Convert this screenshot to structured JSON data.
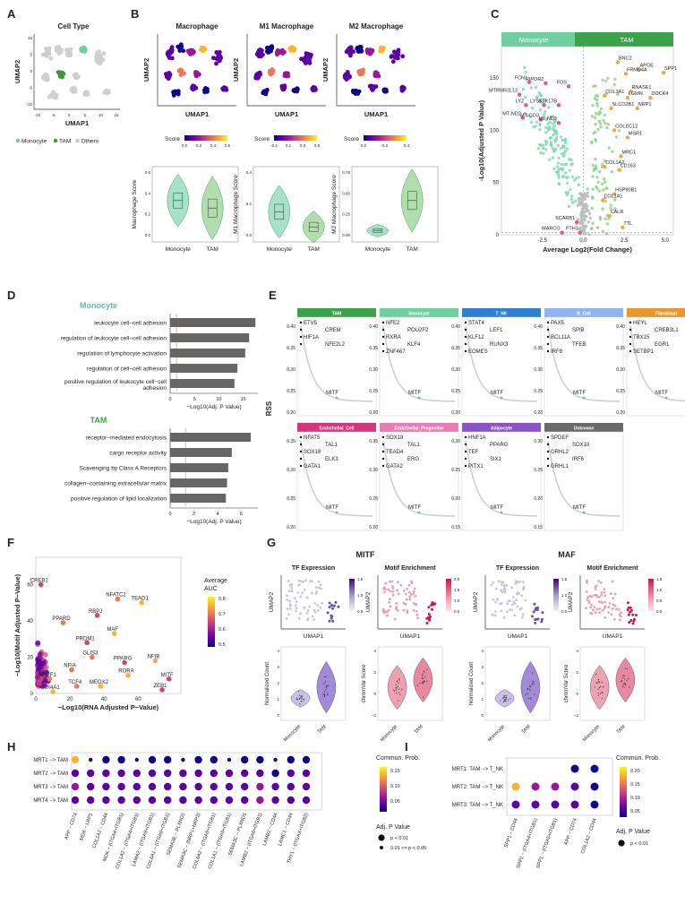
{
  "panel_letters": [
    "A",
    "B",
    "C",
    "D",
    "E",
    "F",
    "G",
    "H",
    "I"
  ],
  "panelA": {
    "title": "Cell Type",
    "xlabel": "UMAP1",
    "ylabel": "UMAP2",
    "xticks": [
      "-10",
      "-5",
      "0",
      "5",
      "10",
      "15"
    ],
    "yticks": [
      "-10",
      "-5",
      "0",
      "5",
      "10"
    ],
    "legend": [
      {
        "label": "Monocyte",
        "color": "#6fcf9f"
      },
      {
        "label": "TAM",
        "color": "#3a9a3a"
      },
      {
        "label": "Others",
        "color": "#c9c9c9"
      }
    ]
  },
  "panelB": {
    "umaps": [
      {
        "title": "Macrophage",
        "legend_title": "Score",
        "ticks": [
          "0.0",
          "0.2",
          "0.4",
          "0.6"
        ]
      },
      {
        "title": "M1 Macrophage",
        "legend_title": "Score",
        "ticks": [
          "-0.1",
          "0.1",
          "0.3",
          "0.5"
        ]
      },
      {
        "title": "M2 Macrophage",
        "legend_title": "Score",
        "ticks": [
          "0.0",
          "0.2",
          "0.4"
        ]
      }
    ],
    "xlabel": "UMAP1",
    "ylabel": "UMAP2",
    "violins": [
      {
        "ylabel": "Macrophage Score",
        "yticks": [
          "0.0",
          "0.2",
          "0.4",
          "0.6"
        ],
        "groups": [
          "Monocyte",
          "TAM"
        ]
      },
      {
        "ylabel": "M1 Macrophage Score",
        "yticks": [
          "0.0",
          "0.2",
          "0.4"
        ],
        "groups": [
          "Monocyte",
          "TAM"
        ]
      },
      {
        "ylabel": "M2 Macrophage Score",
        "yticks": [
          "0.00",
          "0.25",
          "0.50",
          "0.75"
        ],
        "groups": [
          "Monocyte",
          "TAM"
        ]
      }
    ]
  },
  "panelC": {
    "header_left": "Monocyte",
    "header_right": "TAM",
    "xlabel": "Average Log2(Fold Change)",
    "ylabel": "-Log10(Adjusted P Value)",
    "xticks": [
      "-2.5",
      "0.0",
      "2.5",
      "5.0"
    ],
    "yticks": [
      "0",
      "50",
      "100",
      "150"
    ],
    "genes": [
      "BNC2",
      "APOE",
      "FRMD4A",
      "SPP1",
      "RNASE1",
      "FCN1",
      "RIPOR2",
      "FOS",
      "COL3A1",
      "LGMN",
      "DOCK4",
      "MTRNR2L12",
      "LYZ",
      "LYST",
      "STK17B",
      "SLCO2B1",
      "NRP1",
      "MT-ND2",
      "MT-CO3",
      "MT-ND3",
      "COLEC12",
      "MSR1",
      "MRC1",
      "COL1A2",
      "CD163",
      "HSP90B1",
      "COL1A1",
      "CALR",
      "SCARB1",
      "TTL",
      "MARCO",
      "FTH1"
    ]
  },
  "panelD": {
    "groups": [
      {
        "title": "Monocyte",
        "color": "#5cc09a",
        "terms": [
          "leukocyte cell−cell adhesion",
          "regulation of leukocyte cell−cell adhesion",
          "regulation of lymphocyte activation",
          "regulation of cell−cell adhesion",
          "positive regulation of leukocyte cell−cell adhesion"
        ],
        "values": [
          17.5,
          16.2,
          15.4,
          13.8,
          13.2
        ],
        "xticks": [
          "0",
          "5",
          "10",
          "15"
        ],
        "xmax": 18
      },
      {
        "title": "TAM",
        "color": "#3aa34a",
        "terms": [
          "receptor−mediated endocytosis",
          "cargo receptor activity",
          "Scavenging by Class A Receptors",
          "collagen−containing extracellular matrix",
          "positive regulation of lipid localization"
        ],
        "values": [
          6.8,
          5.2,
          4.9,
          4.8,
          4.7
        ],
        "xticks": [
          "0",
          "2",
          "4",
          "6"
        ],
        "xmax": 7.4
      }
    ],
    "xlabel": "−Log10(Adj. P Value)"
  },
  "panelE": {
    "ylabel": "RSS",
    "boxes": [
      {
        "title": "TAM",
        "color": "#3aa34a",
        "genes": [
          "ETV5",
          "CREM",
          "HIF1A",
          "NFE2L2",
          "MITF"
        ],
        "yticks": [
          "0.40",
          "0.35",
          "0.30",
          "0.25",
          "0.20"
        ]
      },
      {
        "title": "Monocyte",
        "color": "#6fcf9f",
        "genes": [
          "NFE2",
          "POU2F2",
          "RXRA",
          "KLF4",
          "ZNF467",
          "MITF"
        ],
        "yticks": [
          "0.40",
          "0.35",
          "0.30",
          "0.25",
          "0.20"
        ]
      },
      {
        "title": "T_NK",
        "color": "#2e7fd1",
        "genes": [
          "STAT4",
          "LEF1",
          "KLF12",
          "RUNX3",
          "EOMES",
          "MITF"
        ],
        "yticks": [
          "0.40",
          "0.35",
          "0.30",
          "0.25",
          "0.20"
        ]
      },
      {
        "title": "B_Cell",
        "color": "#8fb5ee",
        "genes": [
          "PAX5",
          "SPIB",
          "BCL11A",
          "TFEB",
          "IRF8",
          "MITF"
        ],
        "yticks": [
          "0.40",
          "0.35",
          "0.30",
          "0.25",
          "0.20"
        ]
      },
      {
        "title": "Fibroblast",
        "color": "#e8962e",
        "genes": [
          "HEYL",
          "CREB3L1",
          "TBX15",
          "EGR1",
          "SETBP1",
          "MITF"
        ],
        "yticks": [
          "0.40",
          "0.35",
          "0.30",
          "0.25",
          "0.20"
        ]
      },
      {
        "title": "Endothelial_Cell",
        "color": "#d6357b",
        "genes": [
          "NFAT5",
          "TAL1",
          "SOX18",
          "ELK3",
          "GATA1",
          "MITF"
        ],
        "yticks": [
          "0.35",
          "0.30",
          "0.25",
          "0.20"
        ]
      },
      {
        "title": "Endothelial_Progenitor",
        "color": "#e77db3",
        "genes": [
          "SOX18",
          "TAL1",
          "TEAD4",
          "ERG",
          "GATA2",
          "MITF"
        ],
        "yticks": [
          "0.35",
          "0.30",
          "0.25",
          "0.20"
        ]
      },
      {
        "title": "Adipocyte",
        "color": "#8b53c7",
        "genes": [
          "HNF1A",
          "PPARG",
          "TEF",
          "SIX1",
          "PITX1",
          "MITF"
        ],
        "yticks": [
          "0.30",
          "0.25",
          "0.20",
          "0.15"
        ]
      },
      {
        "title": "Unknown",
        "color": "#6a6a6a",
        "genes": [
          "SPDEF",
          "SOX10",
          "GRHL2",
          "IRF6",
          "GRHL1",
          "MITF"
        ],
        "yticks": [
          "0.30",
          "0.25",
          "0.20",
          "0.15"
        ]
      }
    ]
  },
  "panelF": {
    "xlabel": "−Log10(RNA Adjusted P−Value)",
    "ylabel": "−Log10(Motif Adjusted P−Value)",
    "xticks": [
      "0",
      "20",
      "40",
      "60"
    ],
    "yticks": [
      "0",
      "20",
      "40",
      "60"
    ],
    "legend_title": "Average AUC",
    "legend_ticks": [
      "0.8",
      "0.7",
      "0.6",
      "0.5"
    ],
    "labels": [
      "CREB1",
      "NFATC2",
      "TEAD1",
      "RBPJ",
      "PPARD",
      "MAF",
      "PRDM1",
      "GLIS3",
      "NFIB",
      "PPARG",
      "NFIA",
      "RORA",
      "MITF",
      "TCF4",
      "MEOX2",
      "ZEB1",
      "NR2F1",
      "NR4A1"
    ]
  },
  "panelG": {
    "title_mitf": "MITF",
    "title_maf": "MAF",
    "subtitles": [
      "TF Expression",
      "Motif Enrichment",
      "TF Expression",
      "Motif Enrichment"
    ],
    "xlabel": "UMAP1",
    "ylabel": "UMAP2",
    "violin_ylabels": [
      "Normalized Count",
      "chromVar Score",
      "Normalized Count",
      "chromVar Score"
    ],
    "groups": [
      "Monocyte",
      "TAM"
    ],
    "cb_ticks": [
      [
        "0.5",
        "1.0",
        "1.5"
      ],
      [
        "0.5",
        "1.0",
        "1.5",
        "2.0"
      ],
      [
        "0.5",
        "1.0",
        "1.5"
      ],
      [
        "0.0",
        "0.5",
        "1.0",
        "1.5"
      ]
    ],
    "vticks": [
      [
        "0",
        "1",
        "2",
        "3",
        "4"
      ],
      [
        "−2",
        "0",
        "2",
        "4"
      ],
      [
        "0",
        "1",
        "2",
        "3",
        "4"
      ],
      [
        "−2",
        "0",
        "2",
        "4"
      ]
    ]
  },
  "panelH": {
    "rows": [
      "MRT1 −> TAM",
      "MRT2 −> TAM",
      "MRT3 −> TAM",
      "MRT4 −> TAM"
    ],
    "cols": [
      "APP − CD74",
      "MDK − LRP1",
      "COL1A2 − CD44",
      "MDK − (ITGA4+ITGB1)",
      "COL1A2 − (ITGA4+ITGB1)",
      "LAMA2 − (ITGA9+ITGB1)",
      "COL6A1 − (ITGA9+ITGB1)",
      "SEMA3E − PLXND1",
      "SEMA3C − (NRP1+NRP2)",
      "COL6A2 − (ITGA9+ITGB1)",
      "COL1A1 − (ITGA9+ITGB1)",
      "SEMA3C − PLXND1",
      "LAMB2 − (ITGA6+ITGB1)",
      "LAMB2 − CD44",
      "LAMC1 − CD44",
      "THY1 − (ITGAX+ITGB2)"
    ],
    "legend_title": "Commun. Prob.",
    "legend_ticks": [
      "0.15",
      "0.10",
      "0.05"
    ],
    "size_title": "Adj. P Value",
    "size_labels": [
      "p < 0.01",
      "0.01 <= p < 0.05"
    ]
  },
  "panelI": {
    "rows": [
      "MRT1: TAM −> T_NK",
      "MRT2: TAM −> T_NK",
      "MRT3: TAM −> T_NK"
    ],
    "cols": [
      "SPP1 − CD44",
      "SPP1 − (ITGA4+ITGB1)",
      "SPP1 − (ITGA5+ITGB1)",
      "APP − CD74",
      "COL1A2 − CD44"
    ],
    "legend_title": "Commun. Prob.",
    "legend_ticks": [
      "0.20",
      "0.15",
      "0.10",
      "0.05"
    ],
    "size_title": "Adj. P Value",
    "size_labels": [
      "p < 0.01"
    ]
  },
  "chart_data": [
    {
      "type": "bar",
      "panel": "D-Monocyte",
      "categories": [
        "leukocyte cell−cell adhesion",
        "regulation of leukocyte cell−cell adhesion",
        "regulation of lymphocyte activation",
        "regulation of cell−cell adhesion",
        "positive regulation of leukocyte cell−cell adhesion"
      ],
      "values": [
        17.5,
        16.2,
        15.4,
        13.8,
        13.2
      ],
      "xlabel": "−Log10(Adj. P Value)",
      "xlim": [
        0,
        18
      ]
    },
    {
      "type": "bar",
      "panel": "D-TAM",
      "categories": [
        "receptor−mediated endocytosis",
        "cargo receptor activity",
        "Scavenging by Class A Receptors",
        "collagen−containing extracellular matrix",
        "positive regulation of lipid localization"
      ],
      "values": [
        6.8,
        5.2,
        4.9,
        4.8,
        4.7
      ],
      "xlabel": "−Log10(Adj. P Value)",
      "xlim": [
        0,
        7.4
      ]
    },
    {
      "type": "scatter",
      "panel": "C",
      "xlabel": "Average Log2(Fold Change)",
      "ylabel": "-Log10(Adjusted P Value)",
      "xlim": [
        -5,
        5.5
      ],
      "ylim": [
        0,
        180
      ]
    },
    {
      "type": "scatter",
      "panel": "F",
      "xlabel": "−Log10(RNA Adjusted P−Value)",
      "ylabel": "−Log10(Motif Adjusted P−Value)",
      "xlim": [
        0,
        85
      ],
      "ylim": [
        0,
        75
      ]
    },
    {
      "type": "heatmap",
      "panel": "H",
      "rows": [
        "MRT1 −> TAM",
        "MRT2 −> TAM",
        "MRT3 −> TAM",
        "MRT4 −> TAM"
      ],
      "values": [
        [
          0.16,
          0.03,
          0.03,
          0.02,
          0.02,
          0.02,
          0.03,
          0.02,
          0.02,
          0.02,
          0.02,
          0.03,
          0.02,
          0.02,
          0.02,
          0.02
        ],
        [
          0.05,
          0.04,
          0.05,
          0.04,
          0.05,
          0.04,
          0.04,
          0.04,
          0.04,
          0.04,
          0.05,
          0.04,
          0.05,
          0.03,
          0.04,
          0.05
        ],
        [
          0.08,
          0.05,
          0.06,
          0.05,
          0.06,
          0.05,
          0.05,
          0.05,
          0.05,
          0.05,
          0.05,
          0.05,
          0.07,
          0.05,
          0.06,
          0.05
        ],
        [
          0.06,
          0.04,
          0.05,
          0.04,
          0.05,
          0.05,
          0.04,
          0.04,
          0.04,
          0.04,
          0.05,
          0.05,
          0.08,
          0.05,
          0.05,
          0.04
        ]
      ]
    },
    {
      "type": "heatmap",
      "panel": "I",
      "rows": [
        "MRT1: TAM −> T_NK",
        "MRT2: TAM −> T_NK",
        "MRT3: TAM −> T_NK"
      ],
      "values": [
        [
          null,
          null,
          null,
          0.04,
          0.03
        ],
        [
          0.2,
          0.1,
          0.1,
          0.06,
          0.03
        ],
        [
          0.06,
          0.07,
          0.06,
          0.05,
          0.03
        ]
      ]
    }
  ]
}
